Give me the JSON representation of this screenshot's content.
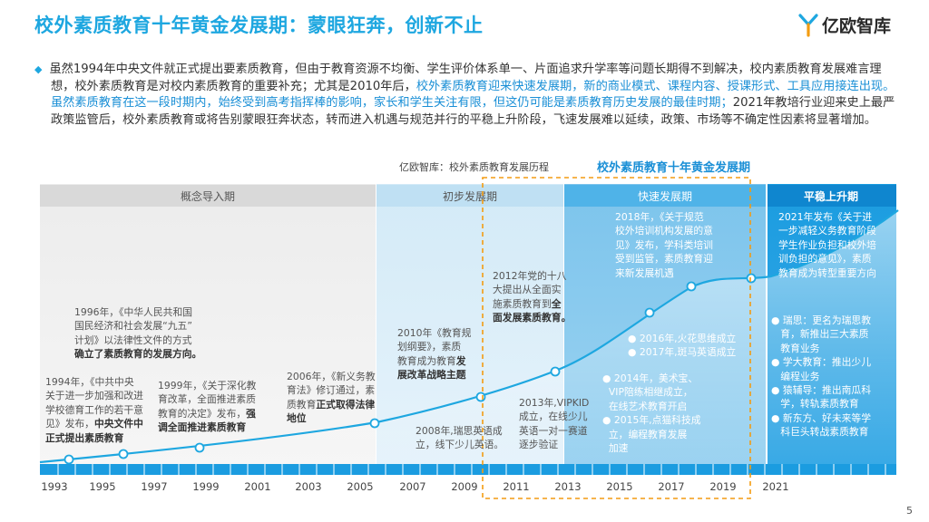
{
  "title": "校外素质教育十年黄金发展期：蒙眼狂奔，创新不止",
  "logo": {
    "text": "亿欧智库",
    "icon": "yiou-logo-icon"
  },
  "intro": {
    "p1": "虽然1994年中央文件就正式提出要素质教育，但由于教育资源不均衡、学生评价体系单一、片面追求升学率等问题长期得不到解决，校内素质教育发展难言理想，校外素质教育是对校内素质教育的重要补充；尤其是2010年后，",
    "hl": "校外素质教育迎来快速发展期，新的商业模式、课程内容、授课形式、工具应用接连出现。虽然素质教育在这一段时期内，始终受到高考指挥棒的影响，家长和学生关注有限，但这仍可能是素质教育历史发展的最佳时期；",
    "p2": "2021年教培行业迎来史上最严政策监管后，校外素质教育或将告别蒙眼狂奔状态，转而进入机遇与规范并行的平稳上升阶段，飞速发展难以延续，政策、市场等不确定性因素将显著增加。"
  },
  "source": "亿欧智库：校外素质教育发展历程",
  "golden_label": "校外素质教育十年黄金发展期",
  "stages": [
    "概念导入期",
    "初步发展期",
    "快速发展期",
    "平稳上升期"
  ],
  "years": [
    "1993",
    "1995",
    "1997",
    "1999",
    "2001",
    "2003",
    "2005",
    "2007",
    "2009",
    "2011",
    "2013",
    "2015",
    "2017",
    "2019",
    "2021"
  ],
  "ann": {
    "a1994": [
      "1994年，《中共中央",
      "关于进一步加强和改进",
      "学校德育工作的若干意",
      "见》发布，",
      "中央文件中",
      "正式提出素质教育"
    ],
    "a1996": [
      "1996年，《中华人民共和国",
      "国民经济和社会发展“九五”",
      "计划》以法律性文件的方式",
      "确立了素质教育的发展方向。"
    ],
    "a1999": [
      "1999年，《关于深化教",
      "育改革，全面推进素质",
      "教育的决定》发布，",
      "强",
      "调全面推进素质教育"
    ],
    "a2006": [
      "2006年，《新义务教",
      "育法》修订通过，素",
      "质教育",
      "正式取得法律",
      "地位"
    ],
    "a2008": [
      "2008年,瑞思英语成",
      "立，线下少儿英语。"
    ],
    "a2010": [
      "2010年《教育规",
      "划纲要》，素质",
      "教育成为教育",
      "发",
      "展改革战略主题"
    ],
    "a2012": [
      "2012年党的十八",
      "大提出从全面实",
      "施素质教育到",
      "全",
      "面发展素质教育。"
    ],
    "a2013": [
      "2013年,VIPKID",
      "成立，在线少儿",
      "英语一对一赛道",
      "逐步验证"
    ],
    "a2014": [
      "2014年，美术宝、",
      "VIP陪练相继成立，",
      "在线艺术教育开启",
      "2015年,点猫科技成",
      "立，编程教育发展",
      "加速"
    ],
    "a2016": [
      "2016年,火花思维成立",
      "2017年,斑马英语成立"
    ],
    "a2018": [
      "2018年，《关于规范",
      "校外培训机构发展的意",
      "见》发布，学科类培训",
      "受到监管，素质教育迎",
      "来新发展机遇"
    ],
    "a2021": [
      "2021年发布《关于进",
      "一步减轻义务教育阶段",
      "学生作业负担和校外培",
      "训负担的意见》，素质",
      "教育成为转型重要方向"
    ],
    "a2021b": [
      "瑞思：更名为瑞思教",
      "育，新推出三大素质",
      "教育业务",
      "学大教育：推出少儿",
      "编程业务",
      "猿辅导：推出南瓜科",
      "学，转轨素质教育",
      "新东方、好未来等学",
      "科巨头转战素质教育"
    ]
  },
  "page_number": "5"
}
